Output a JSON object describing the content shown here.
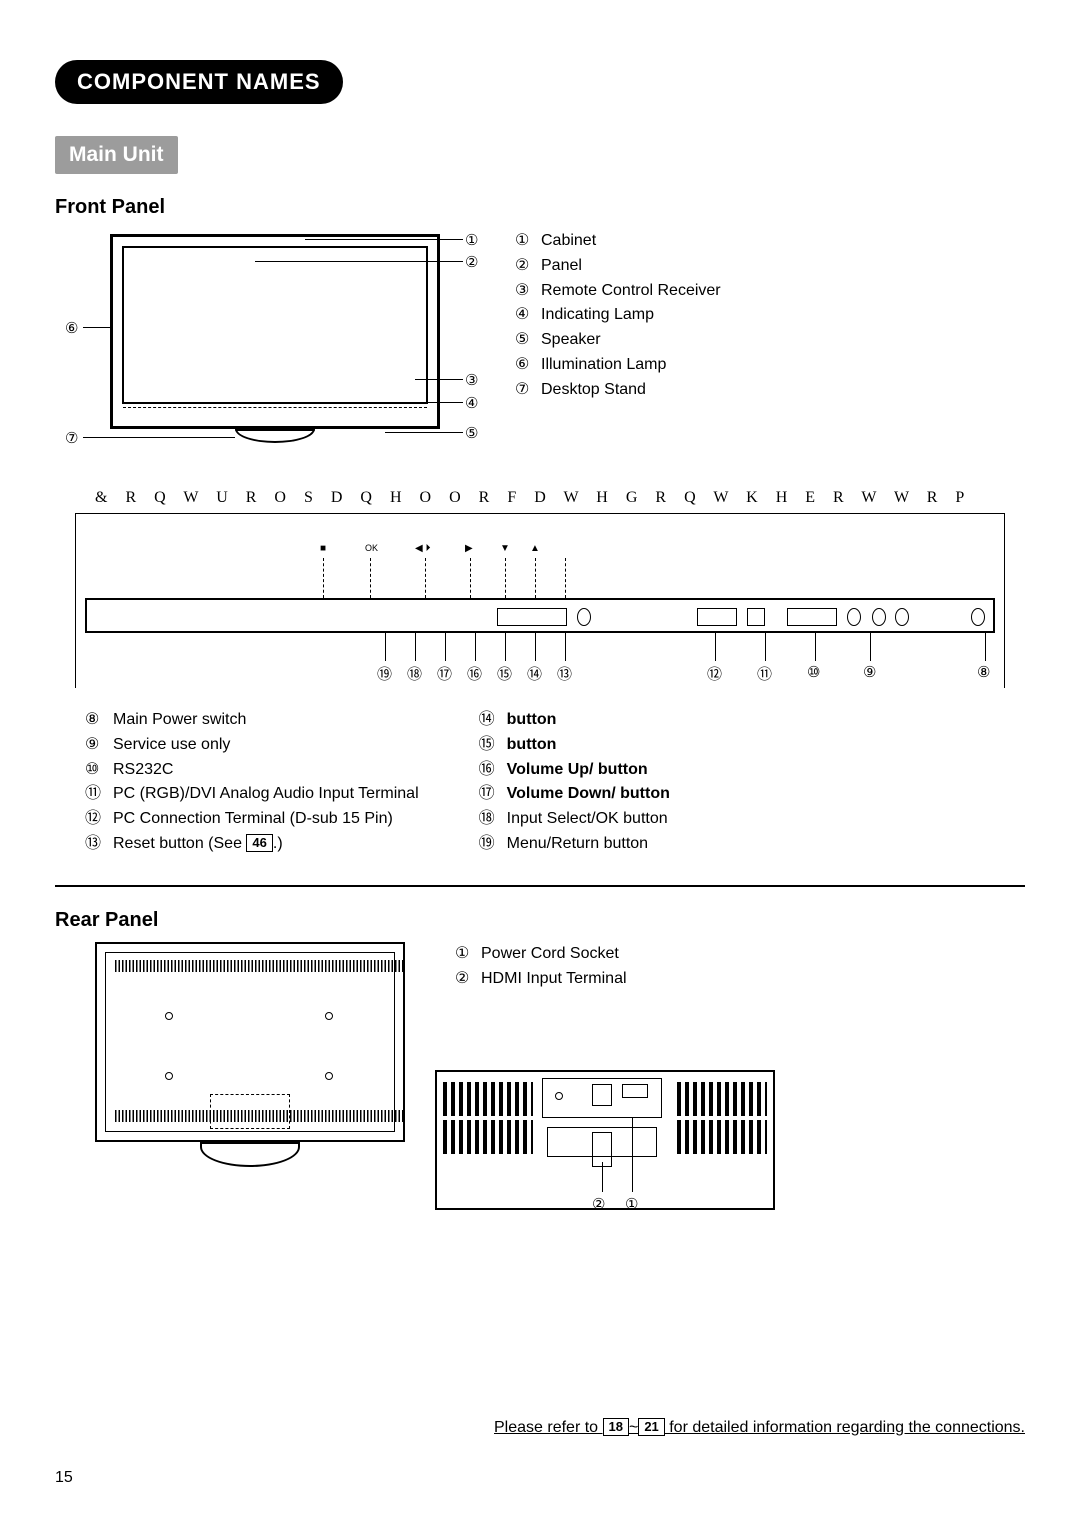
{
  "section_title": "COMPONENT NAMES",
  "sub_tag": "Main Unit",
  "front": {
    "title": "Front Panel",
    "legend_top": [
      {
        "n": "①",
        "label": "Cabinet"
      },
      {
        "n": "②",
        "label": "Panel"
      },
      {
        "n": "③",
        "label": "Remote Control Receiver"
      },
      {
        "n": "④",
        "label": "Indicating Lamp"
      },
      {
        "n": "⑤",
        "label": "Speaker"
      },
      {
        "n": "⑥",
        "label": "Illumination Lamp"
      },
      {
        "n": "⑦",
        "label": "Desktop Stand"
      }
    ],
    "callouts": {
      "c1": "①",
      "c2": "②",
      "c3": "③",
      "c4": "④",
      "c5": "⑤",
      "c6": "⑥",
      "c7": "⑦"
    },
    "control_caption": "& R Q W U R O   S D Q H O     O R F D W H G   R Q   W K H   E R W W R P",
    "ctrl_nums": [
      "⑲",
      "⑱",
      "⑰",
      "⑯",
      "⑮",
      "⑭",
      "⑬",
      "⑫",
      "⑪",
      "⑩",
      "⑨",
      "⑧"
    ],
    "legend_left": [
      {
        "n": "⑧",
        "label": "Main Power switch"
      },
      {
        "n": "⑨",
        "label": "Service use only"
      },
      {
        "n": "⑩",
        "label": "RS232C"
      },
      {
        "n": "⑪",
        "label": "PC (RGB)/DVI Analog Audio Input Terminal"
      },
      {
        "n": "⑫",
        "label": "PC Connection Terminal (D-sub 15 Pin)"
      }
    ],
    "reset_n": "⑬",
    "reset_pre": "Reset button (See ",
    "reset_ref": "46",
    "reset_post": ".)",
    "legend_right": [
      {
        "n": "⑭",
        "label": "button",
        "bold": true
      },
      {
        "n": "⑮",
        "label": "button",
        "bold": true
      },
      {
        "n": "⑯",
        "label": "Volume Up/    button",
        "bold": true
      },
      {
        "n": "⑰",
        "label": "Volume Down/    button",
        "bold": true
      },
      {
        "n": "⑱",
        "label": "Input Select/OK button",
        "bold": false
      },
      {
        "n": "⑲",
        "label": "Menu/Return button",
        "bold": false
      }
    ]
  },
  "rear": {
    "title": "Rear Panel",
    "legend": [
      {
        "n": "①",
        "label": "Power Cord Socket"
      },
      {
        "n": "②",
        "label": "HDMI Input Terminal"
      }
    ],
    "detail_nums": {
      "n1": "①",
      "n2": "②"
    }
  },
  "footer": {
    "pre": "Please refer to ",
    "ref1": "18",
    "tilde": "~",
    "ref2": "21",
    "post": " for detailed information regarding the connections."
  },
  "page_number": "15"
}
